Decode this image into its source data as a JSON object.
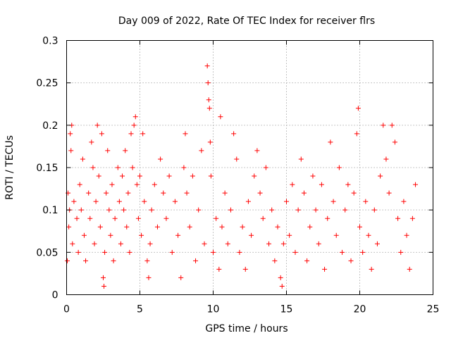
{
  "chart_data": {
    "type": "scatter",
    "title": "Day 009 of 2022, Rate Of TEC Index for receiver flrs",
    "xlabel": "GPS time / hours",
    "ylabel": "ROTI / TECUs",
    "xlim": [
      0,
      25
    ],
    "ylim": [
      0,
      0.3
    ],
    "x_ticks": [
      "0",
      "5",
      "10",
      "15",
      "20",
      "25"
    ],
    "y_ticks": [
      "0",
      "0.05",
      "0.1",
      "0.15",
      "0.2",
      "0.25",
      "0.3"
    ],
    "grid": true,
    "marker": "+",
    "marker_color": "#ff0000",
    "legend": "none",
    "series": [
      {
        "points": [
          [
            0.05,
            0.04
          ],
          [
            0.1,
            0.12
          ],
          [
            0.15,
            0.08
          ],
          [
            0.2,
            0.1
          ],
          [
            0.25,
            0.19
          ],
          [
            0.3,
            0.17
          ],
          [
            0.35,
            0.2
          ],
          [
            0.4,
            0.06
          ],
          [
            0.5,
            0.11
          ],
          [
            0.7,
            0.09
          ],
          [
            0.8,
            0.05
          ],
          [
            0.9,
            0.13
          ],
          [
            1.0,
            0.1
          ],
          [
            1.1,
            0.16
          ],
          [
            1.2,
            0.07
          ],
          [
            1.3,
            0.04
          ],
          [
            1.5,
            0.12
          ],
          [
            1.6,
            0.09
          ],
          [
            1.7,
            0.18
          ],
          [
            1.8,
            0.15
          ],
          [
            1.9,
            0.06
          ],
          [
            2.0,
            0.11
          ],
          [
            2.1,
            0.2
          ],
          [
            2.2,
            0.14
          ],
          [
            2.3,
            0.08
          ],
          [
            2.4,
            0.19
          ],
          [
            2.5,
            0.02
          ],
          [
            2.55,
            0.01
          ],
          [
            2.6,
            0.05
          ],
          [
            2.7,
            0.12
          ],
          [
            2.8,
            0.17
          ],
          [
            2.9,
            0.1
          ],
          [
            3.0,
            0.07
          ],
          [
            3.1,
            0.13
          ],
          [
            3.2,
            0.04
          ],
          [
            3.3,
            0.09
          ],
          [
            3.5,
            0.15
          ],
          [
            3.6,
            0.11
          ],
          [
            3.7,
            0.06
          ],
          [
            3.8,
            0.14
          ],
          [
            3.9,
            0.1
          ],
          [
            4.0,
            0.17
          ],
          [
            4.1,
            0.08
          ],
          [
            4.2,
            0.12
          ],
          [
            4.3,
            0.05
          ],
          [
            4.4,
            0.19
          ],
          [
            4.5,
            0.15
          ],
          [
            4.6,
            0.2
          ],
          [
            4.7,
            0.21
          ],
          [
            4.8,
            0.13
          ],
          [
            4.9,
            0.09
          ],
          [
            5.0,
            0.14
          ],
          [
            5.1,
            0.07
          ],
          [
            5.2,
            0.19
          ],
          [
            5.3,
            0.11
          ],
          [
            5.5,
            0.04
          ],
          [
            5.6,
            0.02
          ],
          [
            5.7,
            0.06
          ],
          [
            5.8,
            0.1
          ],
          [
            6.0,
            0.13
          ],
          [
            6.2,
            0.08
          ],
          [
            6.4,
            0.16
          ],
          [
            6.6,
            0.12
          ],
          [
            6.8,
            0.09
          ],
          [
            7.0,
            0.14
          ],
          [
            7.2,
            0.05
          ],
          [
            7.4,
            0.11
          ],
          [
            7.6,
            0.07
          ],
          [
            7.8,
            0.02
          ],
          [
            8.0,
            0.15
          ],
          [
            8.1,
            0.19
          ],
          [
            8.2,
            0.12
          ],
          [
            8.4,
            0.08
          ],
          [
            8.6,
            0.14
          ],
          [
            8.8,
            0.04
          ],
          [
            9.0,
            0.1
          ],
          [
            9.2,
            0.17
          ],
          [
            9.4,
            0.06
          ],
          [
            9.6,
            0.27
          ],
          [
            9.65,
            0.25
          ],
          [
            9.7,
            0.23
          ],
          [
            9.75,
            0.22
          ],
          [
            9.8,
            0.18
          ],
          [
            9.85,
            0.14
          ],
          [
            10.0,
            0.05
          ],
          [
            10.2,
            0.09
          ],
          [
            10.4,
            0.03
          ],
          [
            10.5,
            0.21
          ],
          [
            10.6,
            0.08
          ],
          [
            10.8,
            0.12
          ],
          [
            11.0,
            0.06
          ],
          [
            11.2,
            0.1
          ],
          [
            11.4,
            0.19
          ],
          [
            11.6,
            0.16
          ],
          [
            11.8,
            0.05
          ],
          [
            12.0,
            0.08
          ],
          [
            12.2,
            0.03
          ],
          [
            12.4,
            0.11
          ],
          [
            12.6,
            0.07
          ],
          [
            12.8,
            0.14
          ],
          [
            13.0,
            0.17
          ],
          [
            13.2,
            0.12
          ],
          [
            13.4,
            0.09
          ],
          [
            13.6,
            0.15
          ],
          [
            13.8,
            0.06
          ],
          [
            14.0,
            0.1
          ],
          [
            14.2,
            0.04
          ],
          [
            14.4,
            0.08
          ],
          [
            14.6,
            0.02
          ],
          [
            14.7,
            0.01
          ],
          [
            14.8,
            0.06
          ],
          [
            15.0,
            0.11
          ],
          [
            15.2,
            0.07
          ],
          [
            15.4,
            0.13
          ],
          [
            15.6,
            0.05
          ],
          [
            15.8,
            0.1
          ],
          [
            16.0,
            0.16
          ],
          [
            16.2,
            0.12
          ],
          [
            16.4,
            0.04
          ],
          [
            16.6,
            0.08
          ],
          [
            16.8,
            0.14
          ],
          [
            17.0,
            0.1
          ],
          [
            17.2,
            0.06
          ],
          [
            17.4,
            0.13
          ],
          [
            17.6,
            0.03
          ],
          [
            17.8,
            0.09
          ],
          [
            18.0,
            0.18
          ],
          [
            18.2,
            0.11
          ],
          [
            18.4,
            0.07
          ],
          [
            18.6,
            0.15
          ],
          [
            18.8,
            0.05
          ],
          [
            19.0,
            0.1
          ],
          [
            19.2,
            0.13
          ],
          [
            19.4,
            0.04
          ],
          [
            19.6,
            0.12
          ],
          [
            19.8,
            0.19
          ],
          [
            19.9,
            0.22
          ],
          [
            20.0,
            0.08
          ],
          [
            20.2,
            0.05
          ],
          [
            20.4,
            0.11
          ],
          [
            20.6,
            0.07
          ],
          [
            20.8,
            0.03
          ],
          [
            21.0,
            0.1
          ],
          [
            21.2,
            0.06
          ],
          [
            21.4,
            0.14
          ],
          [
            21.6,
            0.2
          ],
          [
            21.8,
            0.16
          ],
          [
            22.0,
            0.12
          ],
          [
            22.2,
            0.2
          ],
          [
            22.4,
            0.18
          ],
          [
            22.6,
            0.09
          ],
          [
            22.8,
            0.05
          ],
          [
            23.0,
            0.11
          ],
          [
            23.2,
            0.07
          ],
          [
            23.4,
            0.03
          ],
          [
            23.6,
            0.09
          ],
          [
            23.8,
            0.13
          ]
        ]
      }
    ]
  }
}
